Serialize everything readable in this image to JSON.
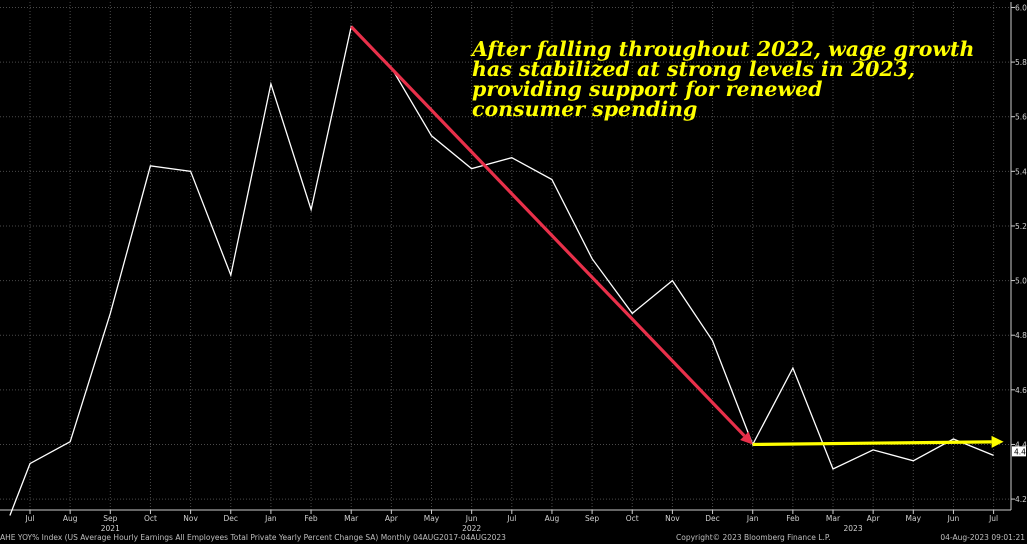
{
  "chart_data": {
    "type": "line",
    "x": [
      "Jul",
      "Aug",
      "Sep",
      "Oct",
      "Nov",
      "Dec",
      "Jan",
      "Feb",
      "Mar",
      "Apr",
      "May",
      "Jun",
      "Jul",
      "Aug",
      "Sep",
      "Oct",
      "Nov",
      "Dec",
      "Jan",
      "Feb",
      "Mar",
      "Apr",
      "May",
      "Jun",
      "Jul"
    ],
    "years": [
      {
        "label": "2021",
        "x_index": 2
      },
      {
        "label": "2022",
        "x_index": 11
      },
      {
        "label": "2023",
        "x_index": 20.5
      }
    ],
    "series": [
      {
        "name": "",
        "color": "#ffffff",
        "values": [
          4.33,
          4.41,
          4.88,
          5.42,
          5.4,
          5.02,
          5.72,
          5.26,
          5.93,
          5.78,
          5.53,
          5.41,
          5.45,
          5.37,
          5.08,
          4.88,
          5.0,
          4.78,
          4.4,
          4.68,
          4.31,
          4.38,
          4.34,
          4.42,
          4.36
        ],
        "start_value": 4.14
      }
    ],
    "yticks": [
      "4.2",
      "4.4",
      "4.6",
      "4.8",
      "5.0",
      "5.2",
      "5.4",
      "5.6",
      "5.8",
      "6.0"
    ],
    "ylim": [
      4.16,
      6.02
    ],
    "last_value_label": "4.4",
    "grid": true,
    "trend_arrows": [
      {
        "color": "#e8304a",
        "from": {
          "x_index": 8,
          "y": 5.93
        },
        "to": {
          "x_index": 18,
          "y": 4.4
        }
      },
      {
        "color": "#ffff00",
        "from": {
          "x_index": 18,
          "y": 4.4
        },
        "to": {
          "x_index": 24,
          "y": 4.41
        }
      }
    ],
    "annotation": [
      "After falling throughout 2022, wage growth",
      "has stabilized at strong levels in 2023,",
      "providing support for renewed",
      "consumer spending"
    ]
  },
  "footer": {
    "left": "AHE YOY% Index (US Average Hourly Earnings All Employees Total Private Yearly Percent Change SA)  Monthly 04AUG2017-04AUG2023",
    "center": "Copyright© 2023 Bloomberg Finance L.P.",
    "right": "04-Aug-2023 09:01:21"
  },
  "colors": {
    "background": "#000000",
    "grid": "#4a4a4a",
    "line": "#ffffff",
    "annotation": "#ffff00"
  }
}
